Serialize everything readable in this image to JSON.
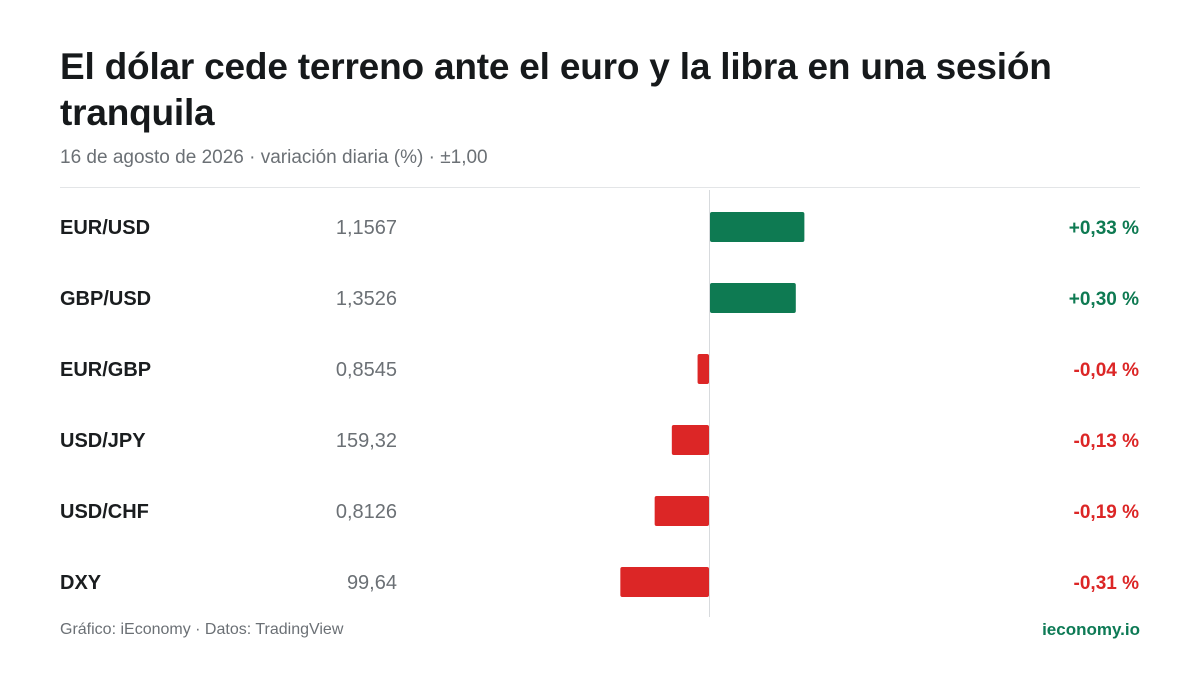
{
  "header": {
    "title": "El dólar cede terreno ante el euro y la libra en una sesión tranquila",
    "subtitle": "16 de agosto de 2026 · variación diaria (%) · ±1,00"
  },
  "footer": {
    "credit": "Gráfico: iEconomy · Datos: TradingView",
    "brand": "ieconomy.io"
  },
  "colors": {
    "positive": "#0e7a52",
    "negative": "#dc2626",
    "brand": "#0d7a55"
  },
  "chart_data": {
    "type": "bar",
    "orientation": "horizontal",
    "categories": [
      "EUR/USD",
      "GBP/USD",
      "EUR/GBP",
      "USD/JPY",
      "USD/CHF",
      "DXY"
    ],
    "rates": [
      "1,1567",
      "1,3526",
      "0,8545",
      "159,32",
      "0,8126",
      "99,64"
    ],
    "values": [
      0.33,
      0.3,
      -0.04,
      -0.13,
      -0.19,
      -0.31
    ],
    "value_labels": [
      "+0,33 %",
      "+0,30 %",
      "-0,04 %",
      "-0,13 %",
      "-0,19 %",
      "-0,31 %"
    ],
    "xlim": [
      -1,
      1
    ],
    "zero_line": true,
    "grid": false,
    "legend": "none"
  }
}
